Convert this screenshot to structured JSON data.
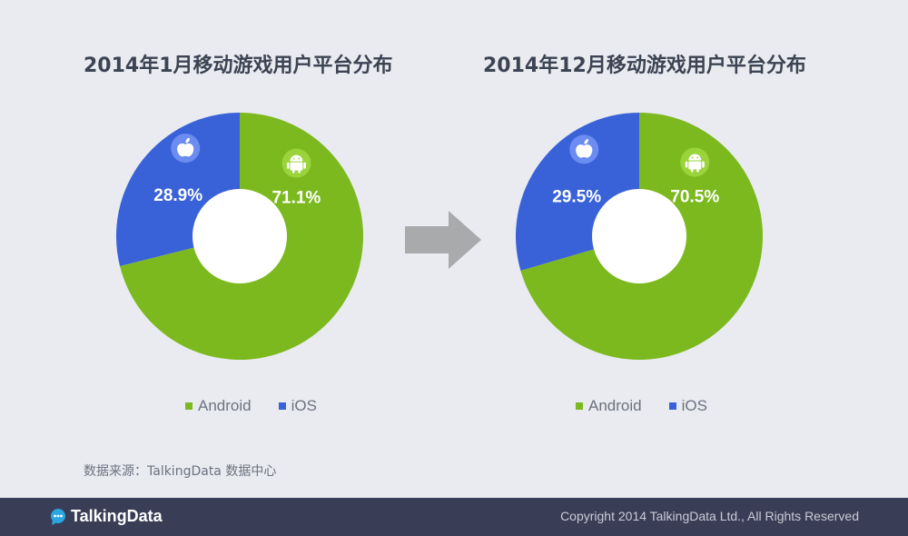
{
  "chart_data": [
    {
      "type": "pie",
      "title": "2014年1月移动游戏用户平台分布",
      "categories": [
        "iOS",
        "Android"
      ],
      "values": [
        28.9,
        71.1
      ],
      "labels": [
        "28.9%",
        "71.1%"
      ],
      "colors": [
        "#3a62d8",
        "#7cb91f"
      ],
      "legend": [
        "Android",
        "iOS"
      ],
      "legend_placement": "bottom",
      "icons": [
        "apple-icon",
        "android-icon"
      ]
    },
    {
      "type": "pie",
      "title": "2014年12月移动游戏用户平台分布",
      "categories": [
        "iOS",
        "Android"
      ],
      "values": [
        29.5,
        70.5
      ],
      "labels": [
        "29.5%",
        "70.5%"
      ],
      "colors": [
        "#3a62d8",
        "#7cb91f"
      ],
      "legend": [
        "Android",
        "iOS"
      ],
      "legend_placement": "bottom",
      "icons": [
        "apple-icon",
        "android-icon"
      ]
    }
  ],
  "source": "数据来源：TalkingData 数据中心",
  "footer": {
    "logo": "TalkingData",
    "copyright": "Copyright 2014 TalkingData Ltd., All Rights Reserved"
  }
}
